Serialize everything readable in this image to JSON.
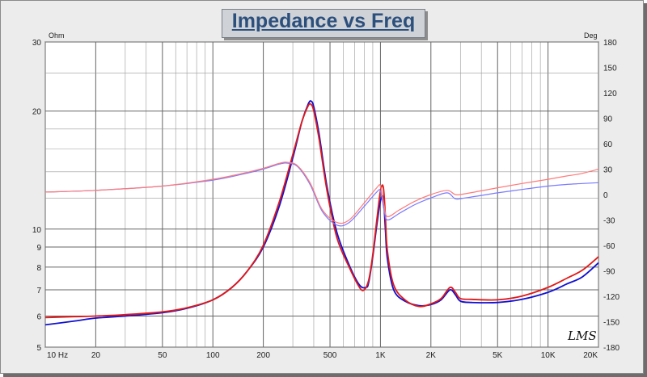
{
  "chart_data": {
    "type": "line",
    "title": "Impedance vs Freq",
    "x_scale": "log",
    "y_scale": "log",
    "xlim": [
      10,
      20000
    ],
    "ylim_left": [
      5,
      30
    ],
    "ylim_right": [
      -180,
      180
    ],
    "left_unit": "Ohm",
    "right_unit": "Deg",
    "grid": true,
    "x_ticks": [
      {
        "v": 10,
        "label": "10  Hz"
      },
      {
        "v": 20,
        "label": "20"
      },
      {
        "v": 50,
        "label": "50"
      },
      {
        "v": 100,
        "label": "100"
      },
      {
        "v": 200,
        "label": "200"
      },
      {
        "v": 500,
        "label": "500"
      },
      {
        "v": 1000,
        "label": "1K"
      },
      {
        "v": 2000,
        "label": "2K"
      },
      {
        "v": 5000,
        "label": "5K"
      },
      {
        "v": 10000,
        "label": "10K"
      },
      {
        "v": 20000,
        "label": "20K"
      }
    ],
    "y_left_ticks": [
      {
        "v": 5,
        "label": "5"
      },
      {
        "v": 6,
        "label": "6"
      },
      {
        "v": 7,
        "label": "7"
      },
      {
        "v": 8,
        "label": "8"
      },
      {
        "v": 9,
        "label": "9"
      },
      {
        "v": 10,
        "label": "10"
      },
      {
        "v": 20,
        "label": "20"
      },
      {
        "v": 30,
        "label": "30"
      }
    ],
    "y_right_ticks": [
      {
        "v": 180,
        "label": "180"
      },
      {
        "v": 150,
        "label": "150"
      },
      {
        "v": 120,
        "label": "120"
      },
      {
        "v": 90,
        "label": "90"
      },
      {
        "v": 60,
        "label": "60"
      },
      {
        "v": 30,
        "label": "30"
      },
      {
        "v": 0,
        "label": "0"
      },
      {
        "v": -30,
        "label": "-30"
      },
      {
        "v": -60,
        "label": "-60"
      },
      {
        "v": -90,
        "label": "-90"
      },
      {
        "v": -120,
        "label": "-120"
      },
      {
        "v": -150,
        "label": "-150"
      },
      {
        "v": -180,
        "label": "-180"
      }
    ],
    "series": [
      {
        "axis": "left",
        "color": "#1010d0",
        "x": [
          10,
          15,
          20,
          30,
          50,
          70,
          100,
          130,
          160,
          200,
          250,
          300,
          340,
          370,
          385,
          400,
          430,
          480,
          550,
          650,
          750,
          820,
          850,
          900,
          950,
          1000,
          1040,
          1070,
          1100,
          1200,
          1400,
          1700,
          2000,
          2300,
          2600,
          2800,
          3000,
          3500,
          5000,
          7000,
          10000,
          13000,
          16000,
          20000
        ],
        "values": [
          5.7,
          5.83,
          5.93,
          6.0,
          6.12,
          6.28,
          6.6,
          7.1,
          7.8,
          9.0,
          11.5,
          15.2,
          18.8,
          20.8,
          21.2,
          20.5,
          17.5,
          12.8,
          9.8,
          8.1,
          7.2,
          7.1,
          7.3,
          8.5,
          10.2,
          11.8,
          12.0,
          10.0,
          8.4,
          7.0,
          6.55,
          6.38,
          6.42,
          6.6,
          7.0,
          6.8,
          6.55,
          6.5,
          6.5,
          6.62,
          6.9,
          7.25,
          7.55,
          8.2
        ]
      },
      {
        "axis": "left",
        "color": "#e01818",
        "x": [
          10,
          15,
          20,
          30,
          50,
          70,
          100,
          130,
          160,
          200,
          250,
          300,
          340,
          370,
          385,
          400,
          430,
          480,
          550,
          650,
          750,
          800,
          850,
          900,
          950,
          1000,
          1040,
          1070,
          1100,
          1200,
          1400,
          1700,
          2000,
          2300,
          2600,
          2800,
          3000,
          3500,
          5000,
          7000,
          10000,
          13000,
          16000,
          20000
        ],
        "values": [
          5.95,
          5.98,
          6.0,
          6.05,
          6.15,
          6.3,
          6.6,
          7.1,
          7.8,
          9.1,
          11.8,
          15.5,
          18.8,
          20.6,
          20.8,
          20.0,
          17.0,
          12.5,
          9.5,
          8.0,
          7.1,
          7.0,
          7.4,
          8.6,
          10.5,
          12.5,
          12.8,
          10.8,
          8.8,
          7.2,
          6.6,
          6.35,
          6.45,
          6.65,
          7.1,
          6.9,
          6.65,
          6.62,
          6.6,
          6.75,
          7.1,
          7.5,
          7.85,
          8.5
        ]
      },
      {
        "axis": "right",
        "color": "#7a7aff",
        "x": [
          10,
          20,
          50,
          100,
          150,
          200,
          250,
          280,
          320,
          380,
          450,
          550,
          650,
          800,
          950,
          1000,
          1050,
          1100,
          1300,
          1600,
          2000,
          2500,
          2800,
          3200,
          5000,
          7000,
          10000,
          13000,
          16000,
          20000
        ],
        "values": [
          3,
          5,
          10,
          17,
          24,
          30,
          36,
          37,
          33,
          12,
          -20,
          -36,
          -33,
          -14,
          3,
          4,
          -18,
          -30,
          -22,
          -12,
          -4,
          2,
          -5,
          -4,
          2,
          6,
          10,
          12,
          13,
          14
        ]
      },
      {
        "axis": "right",
        "color": "#ff7a7a",
        "x": [
          10,
          20,
          50,
          100,
          150,
          200,
          250,
          280,
          320,
          380,
          450,
          550,
          650,
          800,
          950,
          1000,
          1050,
          1100,
          1300,
          1600,
          2000,
          2500,
          2800,
          3200,
          5000,
          7000,
          10000,
          13000,
          16000,
          20000
        ],
        "values": [
          3,
          5,
          10,
          18,
          25,
          31,
          37,
          38,
          34,
          14,
          -18,
          -33,
          -30,
          -10,
          8,
          10,
          -12,
          -26,
          -18,
          -8,
          0,
          5,
          0,
          1,
          8,
          13,
          18,
          22,
          25,
          30
        ]
      }
    ]
  },
  "watermark": "LMS"
}
